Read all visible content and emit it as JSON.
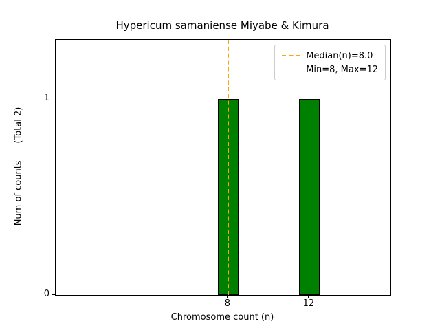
{
  "chart_data": {
    "type": "bar",
    "title": "Hypericum samaniense Miyabe & Kimura",
    "xlabel": "Chromosome count (n)",
    "ylabel": "Num of counts      (Total 2)",
    "categories": [
      8,
      12
    ],
    "values": [
      1,
      1
    ],
    "total_counts": 2,
    "bar_color": "#008000",
    "bar_edge_color": "#000000",
    "bar_width": 1.0,
    "xlim": [
      -0.5,
      16.0
    ],
    "ylim": [
      0,
      1.3
    ],
    "xticks": [
      8,
      12
    ],
    "yticks": [
      0,
      1
    ],
    "grid": false,
    "median_line": {
      "x": 8.0,
      "color": "#ffa500",
      "style": "dashed"
    },
    "legend": {
      "position": "upper right",
      "entries": [
        {
          "marker": "dashed-line",
          "color": "#ffa500",
          "label": "Median(n)=8.0"
        },
        {
          "marker": "none",
          "color": "",
          "label": "Min=8, Max=12"
        }
      ]
    }
  }
}
